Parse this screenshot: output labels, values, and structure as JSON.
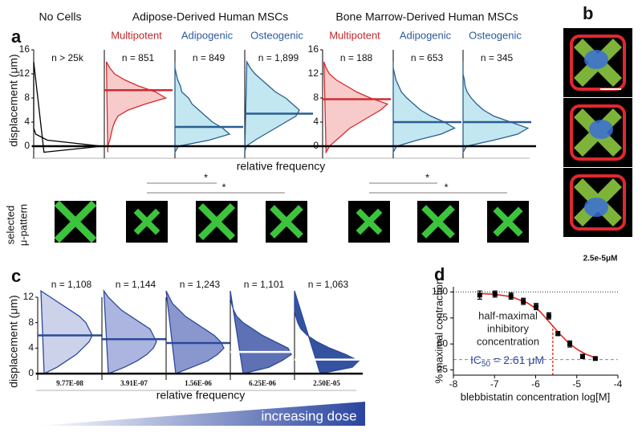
{
  "panel_b": {
    "label": "b",
    "caption": "2.5e-5μM"
  },
  "chart_data": [
    {
      "type": "distribution",
      "panel_label": "a",
      "y_label": "displacement (μm)",
      "x_label": "relative frequency",
      "ylim": [
        -2,
        16
      ],
      "yticks": [
        0,
        4,
        8,
        12,
        16
      ],
      "xlim": [
        0,
        1
      ],
      "displacement": [
        -1,
        0,
        1,
        2,
        3,
        4,
        5,
        6,
        7,
        8,
        9,
        10,
        11,
        12,
        13,
        14
      ],
      "significance": [
        "*",
        "*",
        "*",
        "*"
      ],
      "pattern_label": [
        "selected",
        "μ-pattern"
      ],
      "groups": [
        {
          "title": "No Cells",
          "series": [
            {
              "n_label": "n > 25k",
              "color": "#000000",
              "fill": "none",
              "values": [
                0.15,
                1,
                0.2,
                0.03,
                0,
                0,
                0,
                0,
                0,
                0,
                0,
                0,
                0,
                0,
                0,
                0
              ]
            }
          ]
        },
        {
          "title": "Adipose-Derived Human MSCs",
          "series": [
            {
              "name": "Multipotent",
              "name_color": "#c1272d",
              "n_label": "n = 851",
              "color": "#d42a2f",
              "fill": "#f7c5c5",
              "median": 9.3,
              "values": [
                0.05,
                0.05,
                0.08,
                0.1,
                0.12,
                0.15,
                0.2,
                0.35,
                0.6,
                0.9,
                0.75,
                0.5,
                0.3,
                0.15,
                0.08,
                0.03
              ]
            },
            {
              "name": "Adipogenic",
              "name_color": "#2e5a9c",
              "n_label": "n = 849",
              "color": "#2a5d92",
              "fill": "#bde4ee",
              "median": 3.2,
              "values": [
                0,
                0.05,
                0.5,
                0.8,
                0.7,
                0.55,
                0.45,
                0.35,
                0.25,
                0.2,
                0.1,
                0.08,
                0.04,
                0.02,
                0,
                0
              ]
            },
            {
              "name": "Osteogenic",
              "name_color": "#2e5a9c",
              "n_label": "n = 1,899",
              "color": "#2a5d92",
              "fill": "#bde4ee",
              "median": 5.4,
              "values": [
                0,
                0.02,
                0.15,
                0.3,
                0.45,
                0.6,
                0.75,
                0.8,
                0.7,
                0.6,
                0.45,
                0.35,
                0.25,
                0.15,
                0.08,
                0.03
              ]
            }
          ]
        },
        {
          "title": "Bone Marrow-Derived Human MSCs",
          "series": [
            {
              "name": "Multipotent",
              "name_color": "#c1272d",
              "n_label": "n = 188",
              "color": "#d42a2f",
              "fill": "#f7c5c5",
              "median": 7.8,
              "values": [
                0.05,
                0.1,
                0.2,
                0.3,
                0.4,
                0.55,
                0.7,
                0.85,
                0.95,
                0.7,
                0.5,
                0.35,
                0.2,
                0.1,
                0.05,
                0.02
              ]
            },
            {
              "name": "Adipogenic",
              "name_color": "#2e5a9c",
              "n_label": "n = 653",
              "color": "#2a5d92",
              "fill": "#bde4ee",
              "median": 4.0,
              "values": [
                0,
                0.05,
                0.35,
                0.7,
                0.9,
                0.75,
                0.55,
                0.4,
                0.3,
                0.2,
                0.12,
                0.08,
                0.04,
                0.02,
                0,
                0
              ]
            },
            {
              "name": "Osteogenic",
              "name_color": "#2e5a9c",
              "n_label": "n = 345",
              "color": "#2a5d92",
              "fill": "#bde4ee",
              "median": 4.0,
              "values": [
                0,
                0.05,
                0.45,
                0.8,
                0.95,
                0.7,
                0.45,
                0.3,
                0.2,
                0.12,
                0.06,
                0.03,
                0.02,
                0,
                0,
                0
              ]
            }
          ]
        }
      ]
    },
    {
      "type": "distribution",
      "panel_label": "c",
      "y_label": "displacement (μm)",
      "x_label": "relative frequency",
      "dose_label": "increasing dose",
      "ylim": [
        -1,
        12
      ],
      "yticks": [
        0,
        4,
        8,
        12
      ],
      "xlim": [
        0,
        1
      ],
      "displacement": [
        0,
        1,
        2,
        3,
        4,
        5,
        6,
        7,
        8,
        9,
        10,
        11,
        12,
        13
      ],
      "groups": [
        {
          "series": [
            {
              "n_label": "n = 1,108",
              "dose": "9.77E-08",
              "color": "#2b4a9b",
              "fill": "#c7cde8",
              "median_color": "#2b4a9b",
              "median": 6.0,
              "values": [
                0.1,
                0.3,
                0.45,
                0.6,
                0.7,
                0.8,
                0.85,
                0.8,
                0.75,
                0.65,
                0.5,
                0.35,
                0.2,
                0.05
              ]
            },
            {
              "n_label": "n = 1,144",
              "dose": "3.91E-07",
              "color": "#2b4a9b",
              "fill": "#a3addb",
              "median_color": "#2b4a9b",
              "median": 5.4,
              "values": [
                0.1,
                0.35,
                0.55,
                0.7,
                0.8,
                0.85,
                0.8,
                0.75,
                0.6,
                0.45,
                0.3,
                0.2,
                0.1,
                0.03
              ]
            },
            {
              "n_label": "n = 1,243",
              "dose": "1.56E-06",
              "color": "#2b4a9b",
              "fill": "#7d8cc9",
              "median_color": "#2b4a9b",
              "median": 4.8,
              "values": [
                0.15,
                0.4,
                0.65,
                0.8,
                0.9,
                0.85,
                0.75,
                0.6,
                0.45,
                0.3,
                0.2,
                0.1,
                0.05,
                0
              ]
            },
            {
              "n_label": "n = 1,101",
              "dose": "6.25E-06",
              "color": "#2b4a9b",
              "fill": "#4d62ad",
              "median_color": "#ffffff",
              "median": 3.4,
              "values": [
                0.2,
                0.6,
                0.8,
                0.95,
                0.9,
                0.7,
                0.5,
                0.35,
                0.2,
                0.1,
                0.05,
                0.02,
                0,
                0
              ]
            },
            {
              "n_label": "n = 1,063",
              "dose": "2.50E-05",
              "color": "#2b4a9b",
              "fill": "#1f3f97",
              "median_color": "#ffffff",
              "median": 2.2,
              "values": [
                0.4,
                0.9,
                1,
                0.8,
                0.55,
                0.35,
                0.2,
                0.1,
                0.05,
                0.02,
                0,
                0,
                0,
                0
              ]
            }
          ]
        }
      ]
    },
    {
      "type": "scatter",
      "panel_label": "d",
      "y_label": "% maximal contraction",
      "x_label": "blebbistatin concentration log[M]",
      "xlim": [
        -8,
        -4
      ],
      "xticks": [
        -8,
        -7,
        -6,
        -5,
        -4
      ],
      "ylim": [
        20,
        105
      ],
      "yticks": [
        25,
        50,
        75,
        100
      ],
      "x": [
        -7.36,
        -6.99,
        -6.6,
        -6.3,
        -5.99,
        -5.68,
        -5.46,
        -5.17,
        -4.86,
        -4.55
      ],
      "values": [
        97,
        98,
        96,
        91,
        86,
        77,
        60,
        50,
        38,
        36
      ],
      "errors": [
        4,
        3,
        3,
        3,
        3,
        3,
        2,
        3,
        2,
        1
      ],
      "color": "#000000",
      "fit": {
        "color": "#e0261f",
        "x": [
          -7.4,
          -7.0,
          -6.6,
          -6.2,
          -5.9,
          -5.6,
          -5.4,
          -5.2,
          -5.0,
          -4.8,
          -4.6
        ],
        "values": [
          98.6,
          97.8,
          95.5,
          89.5,
          81.5,
          68,
          59,
          51,
          45,
          40.5,
          37.5
        ]
      },
      "dotted_line": 100,
      "dashed_line": 35,
      "ic50_x": -5.583,
      "annotation": [
        "half-maximal",
        "inhibitory",
        "concentration"
      ],
      "ic50_label": {
        "prefix": "IC",
        "sub": "50",
        "rest": "= 2.61 μM",
        "color": "#2e4a9c"
      }
    }
  ]
}
